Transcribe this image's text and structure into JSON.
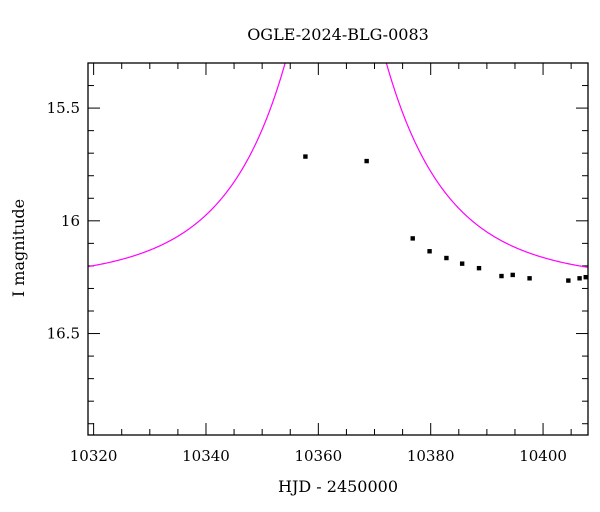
{
  "chart_data": {
    "type": "scatter",
    "title": "OGLE-2024-BLG-0083",
    "xlabel": "HJD - 2450000",
    "ylabel": "I magnitude",
    "xlim": [
      10319,
      10408
    ],
    "ylim": [
      16.95,
      15.3
    ],
    "y_inverted": true,
    "xticks": [
      10320,
      10340,
      10360,
      10380,
      10400
    ],
    "yticks": [
      15.5,
      16,
      16.5
    ],
    "ytick_labels": [
      "15.5",
      "16",
      "16.5"
    ],
    "grid": false,
    "points": [
      {
        "x": 10357.7,
        "y": 15.715,
        "err": 0.008
      },
      {
        "x": 10368.6,
        "y": 15.735,
        "err": 0.008
      },
      {
        "x": 10376.8,
        "y": 16.078,
        "err": 0.008
      },
      {
        "x": 10379.8,
        "y": 16.135,
        "err": 0.008
      },
      {
        "x": 10382.8,
        "y": 16.165,
        "err": 0.008
      },
      {
        "x": 10385.6,
        "y": 16.19,
        "err": 0.008
      },
      {
        "x": 10388.6,
        "y": 16.21,
        "err": 0.008
      },
      {
        "x": 10392.6,
        "y": 16.245,
        "err": 0.008
      },
      {
        "x": 10394.6,
        "y": 16.24,
        "err": 0.008
      },
      {
        "x": 10397.6,
        "y": 16.255,
        "err": 0.008
      },
      {
        "x": 10404.5,
        "y": 16.265,
        "err": 0.008
      },
      {
        "x": 10406.5,
        "y": 16.255,
        "err": 0.008
      },
      {
        "x": 10407.6,
        "y": 16.25,
        "err": 0.008
      }
    ],
    "model": {
      "type": "paczynski",
      "t0": 10363.1,
      "tE": 22.5,
      "u0": 0.178,
      "baseline_mag": 16.27,
      "color": "#ff00ff"
    }
  }
}
